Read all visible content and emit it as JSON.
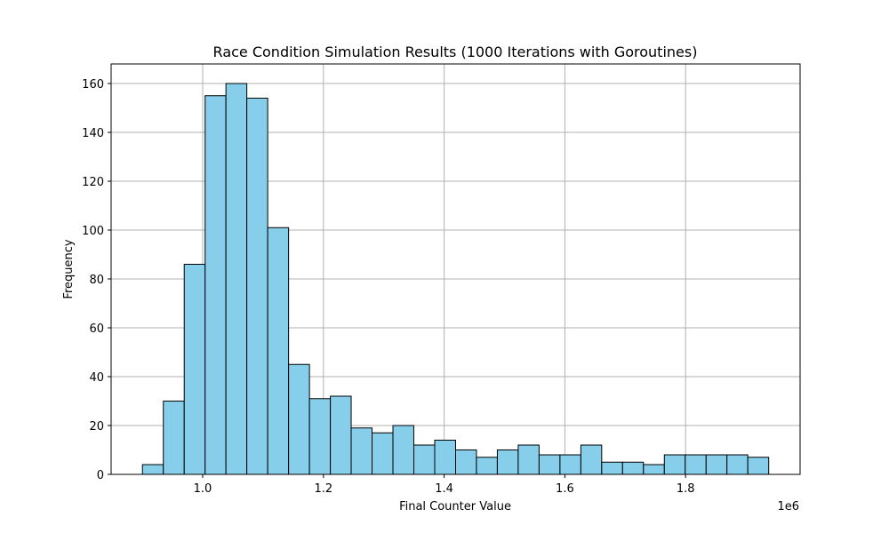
{
  "chart_data": {
    "type": "bar",
    "title": "Race Condition Simulation Results (1000 Iterations with Goroutines)",
    "xlabel": "Final Counter Value",
    "ylabel": "Frequency",
    "x_offset_label": "1e6",
    "xlim": [
      0.8483,
      1.9897
    ],
    "ylim": [
      0,
      168
    ],
    "x_ticks": [
      1.0,
      1.2,
      1.4,
      1.6,
      1.8
    ],
    "x_tick_labels": [
      "1.0",
      "1.2",
      "1.4",
      "1.6",
      "1.8"
    ],
    "y_ticks": [
      0,
      20,
      40,
      60,
      80,
      100,
      120,
      140,
      160
    ],
    "y_tick_labels": [
      "0",
      "20",
      "40",
      "60",
      "80",
      "100",
      "120",
      "140",
      "160"
    ],
    "grid": true,
    "bar_color": "#87ceeb",
    "edge_color": "#000000",
    "bin_edges": [
      0.9002,
      0.9348,
      0.9694,
      1.004,
      1.0385,
      1.0731,
      1.1077,
      1.1423,
      1.1769,
      1.2115,
      1.246,
      1.2806,
      1.3152,
      1.3498,
      1.3844,
      1.419,
      1.4535,
      1.4881,
      1.5227,
      1.5573,
      1.5919,
      1.6265,
      1.661,
      1.6956,
      1.7302,
      1.7648,
      1.7994,
      1.834,
      1.8685,
      1.9031,
      1.9377
    ],
    "values": [
      4,
      30,
      86,
      155,
      160,
      154,
      101,
      45,
      31,
      32,
      19,
      17,
      20,
      12,
      14,
      10,
      7,
      10,
      12,
      8,
      8,
      12,
      5,
      5,
      4,
      8,
      8,
      8,
      8,
      7
    ]
  }
}
